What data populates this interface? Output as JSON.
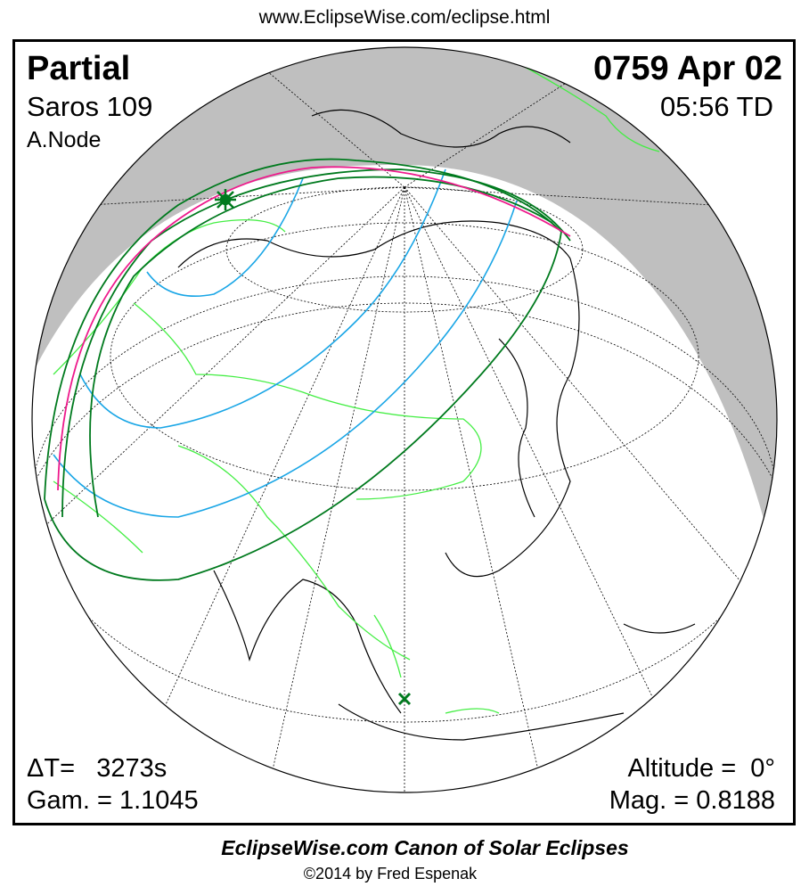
{
  "header": {
    "url": "www.EclipseWise.com/eclipse.html"
  },
  "eclipse": {
    "type": "Partial",
    "saros": "Saros 109",
    "node": "A.Node",
    "date": "0759 Apr 02",
    "time": "05:56 TD",
    "delta_t": "ΔT=   3273s",
    "gamma": "Gam. = 1.1045",
    "altitude": "Altitude =  0°",
    "magnitude": "Mag. = 0.8188"
  },
  "footer": {
    "canon": "EclipseWise.com Canon of Solar Eclipses",
    "copyright": "©2014 by Fred Espenak"
  },
  "colors": {
    "night_shadow": "#bfbfbf",
    "borders": "#44ee44",
    "coast": "#000000",
    "penumbra_limits": "#007a1e",
    "magnitude_curves": "#1aa6e6",
    "max_curve": "#ee1a8c",
    "markers": "#007a1e"
  },
  "markers": {
    "greatest_eclipse": "star-icon",
    "sub_solar": "cross-icon"
  }
}
